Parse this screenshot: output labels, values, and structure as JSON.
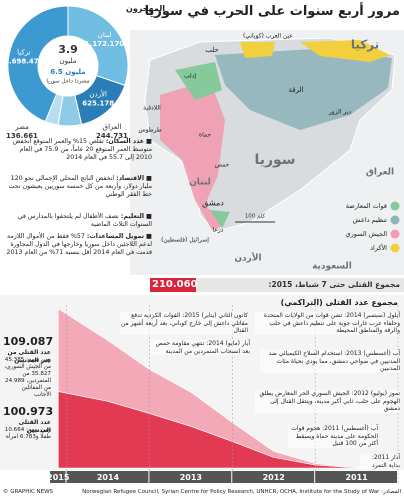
{
  "title": "مرور أربع سنوات على الحرب في سوريا",
  "chart_data": [
    {
      "type": "pie",
      "title": "المهجرون",
      "categories": [
        "لبنان",
        "الأردن",
        "العراق",
        "مصر",
        "تركيا"
      ],
      "values": [
        1172170,
        625178,
        244731,
        136661,
        1698472
      ],
      "value_labels": [
        "1.172.170",
        "625.178",
        "244.731",
        "136.661",
        "1.698.472"
      ],
      "colors": [
        "#6fbde2",
        "#2a7db6",
        "#8fcbe7",
        "#b7def0",
        "#3d9ad0"
      ],
      "center_value": "3.9",
      "center_unit": "مليون",
      "internal": "6.5 مليون",
      "internal_note": "مشردا داخل سوريا"
    },
    {
      "type": "area",
      "title": "مجموع عدد القتلى (التراكمي)",
      "stacked": true,
      "total_text": "مجموع القتلى حتى 7 شباط، 2015:",
      "total": "210.060",
      "x": [
        2011.2,
        2011.6,
        2012.0,
        2012.5,
        2013.0,
        2013.5,
        2014.0,
        2014.5,
        2015.1
      ],
      "series": [
        {
          "name": "عدد القتلى المدنيين",
          "color": "#e23a52",
          "values": [
            0,
            1000,
            4000,
            14000,
            35000,
            55000,
            72000,
            88000,
            100973
          ],
          "value_labels": [
            null,
            null,
            null,
            null,
            null,
            null,
            null,
            null,
            "100.973"
          ],
          "details": "ومن بينهم: 10.664 طفلا و6.783 امرأة"
        },
        {
          "name": "عدد القتلى من غير المدنيين",
          "color": "#f3a9b8",
          "values": [
            0,
            500,
            2000,
            8000,
            25000,
            45000,
            58000,
            80000,
            109087
          ],
          "value_labels": [
            null,
            null,
            null,
            null,
            null,
            null,
            null,
            null,
            "109.087"
          ],
          "details": "ومن بينهم: 45.385 من الجيش السوري، 35.827 من المتمردين، 24.989 من المقاتلين الأجانب"
        }
      ],
      "xlim": [
        2011,
        2015.2
      ],
      "xticks": [
        2011,
        2012,
        2013,
        2014,
        2015
      ],
      "ylim": [
        0,
        215000
      ],
      "annotations": [
        "كانون الثاني (يناير) 2015: القوات الكردية تدفع مقاتلي داعش إلى خارج كوباني، بعد أربعة أشهر من القتال",
        "أيلول (سبتمبر) 2014: تشن قوات من الولايات المتحدة وحلفاء عرب غارات جوية على تنظيم داعش في حلب والرقة والمناطق المحيطة",
        "آب (أغسطس) 2013: استخدام السلاح الكيميائي ضد المدنيين في ضواحي دمشق، مما يودي بحياة مئات المدنيين",
        "أيار (مايو) 2014: تنتهي مقاومة حمص بعد انسحاب المتمردين من المدينة",
        "تموز (يوليو) 2012: الجيش السوري الحر المعارض يطلق الهجوم على حلب، ثاني أكبر مدينة، وينتقل القتال إلى دمشق",
        "آب (أغسطس) 2011: هجوم قوات الحكومة على مدينة حماة ويسقط أكثر من 100 قتيل",
        "آذار 2011: بداية التمرد"
      ]
    }
  ],
  "map": {
    "labels": [
      "تركيا",
      "حلب",
      "عين العرب (كوباني)",
      "إدلب",
      "اللاذقية",
      "طرطوس",
      "حماة",
      "حمص",
      "الرقة",
      "دير الزور",
      "سوريا",
      "العراق",
      "لبنان",
      "دمشق",
      "درعا",
      "إسرائيل (فلسطين)",
      "الأردن",
      "السعودية"
    ],
    "scale": "100 كلم",
    "legend": [
      {
        "name": "قوات المعارضة",
        "color": "#86c99a"
      },
      {
        "name": "تنظيم داعش",
        "color": "#8fb4ba"
      },
      {
        "name": "الجيش السوري",
        "color": "#f19bb0"
      },
      {
        "name": "الأكراد",
        "color": "#f2cf3c"
      }
    ]
  },
  "facts": [
    {
      "head": "عدد السكان:",
      "text": "تقلص 15% والعمر المتوقع انخفض متوسط العمر المتوقع 20 عاماً، من 75.9 في العام 2010 إلى 55.7 في العام 2014"
    },
    {
      "head": "الاقتصاد:",
      "text": "انخفض الناتج المحلي الإجمالي نحو 120 مليار دولار، وأربعة من كل خمسة سوريين يعيشون تحت خط الفقر الوطني"
    },
    {
      "head": "التعليم:",
      "text": "نصف الأطفال لم يلتحقوا بالمدارس في السنوات الثلاث الماضية"
    },
    {
      "head": "تمويل المساعدات:",
      "text": "57% فقط من الأموال اللازمة لدعم اللاجئين داخل سوريا وخارجها في الدول المجاورة قدمت في العام 2014 أقل بنسبة 71% من العام 2013"
    }
  ],
  "footer": {
    "credit": "© GRAPHIC NEWS",
    "sources": "Norwegian Refugee Council, Syrian Centre for Policy Research, UNHCR, OCHA, Institute for the Study of War :المصادر"
  }
}
